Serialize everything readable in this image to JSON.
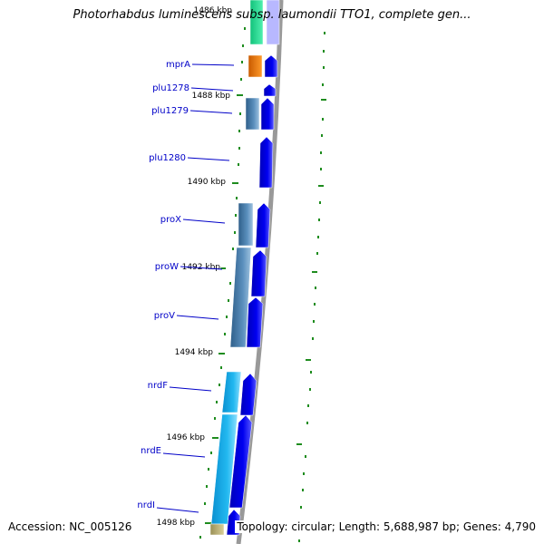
{
  "title": "Photorhabdus luminescens subsp. laumondii TTO1, complete gen...",
  "footer": {
    "accession": "Accession: NC_005126",
    "summary": "Topology: circular; Length: 5,688,987 bp; Genes: 4,790"
  },
  "colors": {
    "gene_label": "#0000c8",
    "tick": "#1e8c1e",
    "forward_arrow": "#0000ee",
    "backbone": "#999999"
  },
  "scale_labels": [
    "1486 kbp",
    "1488 kbp",
    "1490 kbp",
    "1492 kbp",
    "1494 kbp",
    "1496 kbp",
    "1498 kbp"
  ],
  "genes": [
    {
      "label": "mprA"
    },
    {
      "label": "plu1278"
    },
    {
      "label": "plu1279"
    },
    {
      "label": "plu1280"
    },
    {
      "label": "proX"
    },
    {
      "label": "proW"
    },
    {
      "label": "proV"
    },
    {
      "label": "nrdF"
    },
    {
      "label": "nrdE"
    },
    {
      "label": "nrdI"
    }
  ]
}
